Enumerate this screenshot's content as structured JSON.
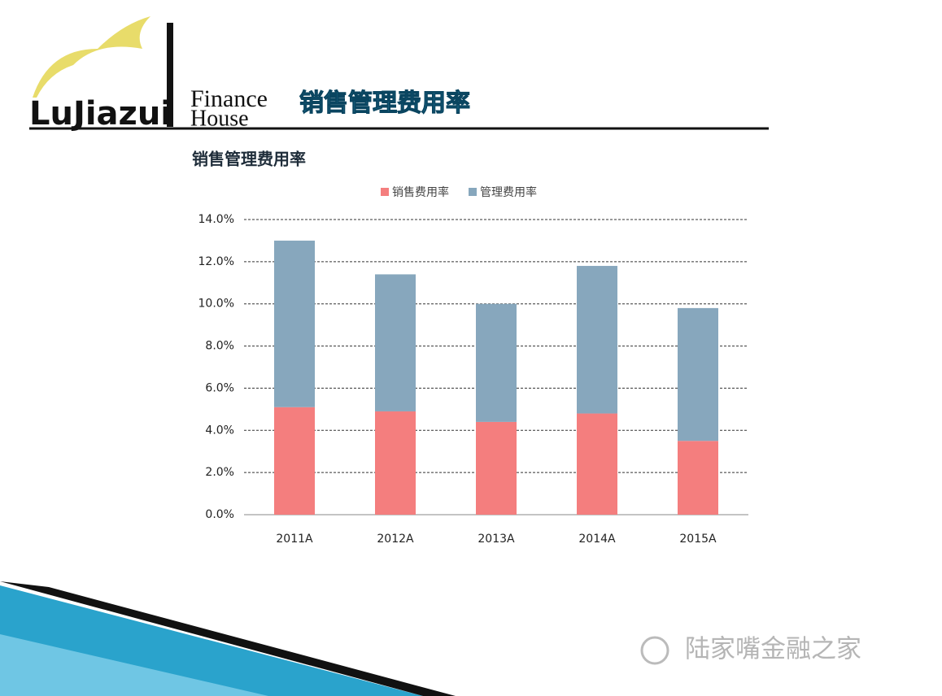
{
  "header": {
    "logo_main": "LuJiazui",
    "logo_top": "Finance",
    "logo_bottom": "House",
    "title": "销售管理费用率"
  },
  "chart_data": {
    "type": "stacked_bar",
    "title": "销售管理费用率",
    "categories": [
      "2011A",
      "2012A",
      "2013A",
      "2014A",
      "2015A"
    ],
    "series": [
      {
        "name": "销售费用率",
        "color": "#f47e7e",
        "values": [
          5.1,
          4.9,
          4.4,
          4.8,
          3.5
        ]
      },
      {
        "name": "管理费用率",
        "color": "#87a7bd",
        "values": [
          7.9,
          6.5,
          5.6,
          7.0,
          6.3
        ]
      }
    ],
    "ylim": [
      0,
      14
    ],
    "yticks": [
      {
        "value": 0,
        "label": "0.0%"
      },
      {
        "value": 2,
        "label": "2.0%"
      },
      {
        "value": 4,
        "label": "4.0%"
      },
      {
        "value": 6,
        "label": "6.0%"
      },
      {
        "value": 8,
        "label": "8.0%"
      },
      {
        "value": 10,
        "label": "10.0%"
      },
      {
        "value": 12,
        "label": "12.0%"
      },
      {
        "value": 14,
        "label": "14.0%"
      }
    ],
    "grid": true,
    "legend": "top"
  },
  "watermark": "陆家嘴金融之家"
}
